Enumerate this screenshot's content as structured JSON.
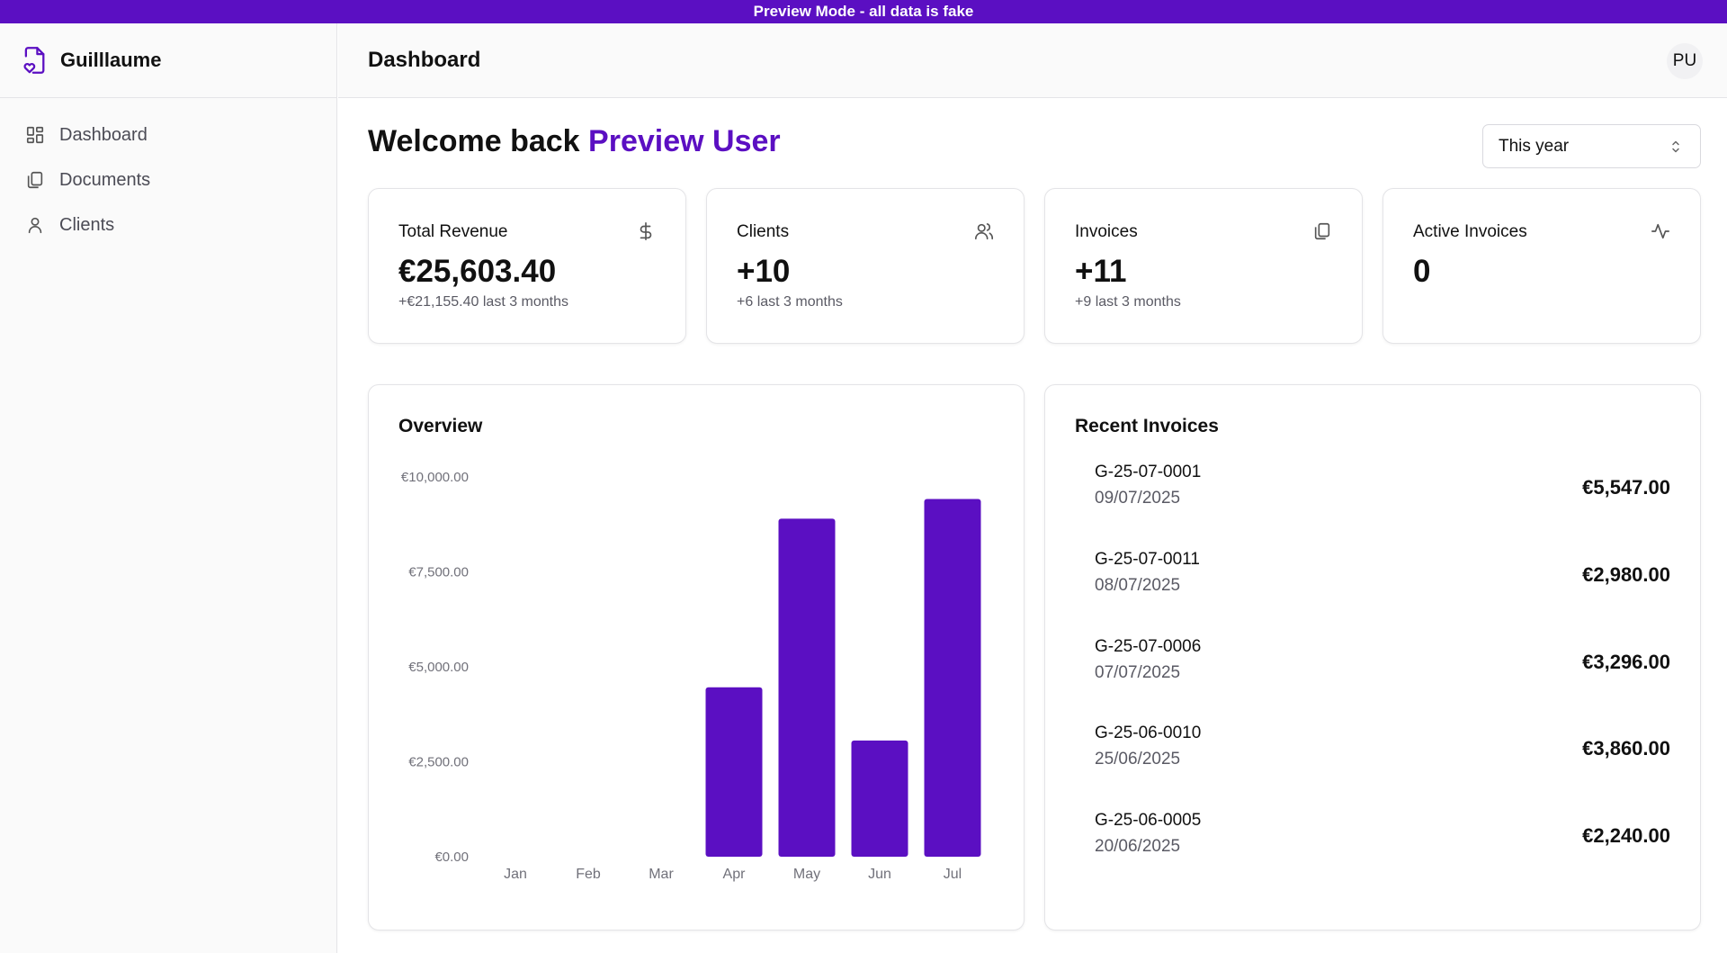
{
  "banner": {
    "text": "Preview Mode - all data is fake"
  },
  "brand": {
    "name": "Guilllaume"
  },
  "nav": {
    "items": [
      {
        "label": "Dashboard",
        "icon": "dashboard-icon"
      },
      {
        "label": "Documents",
        "icon": "documents-icon"
      },
      {
        "label": "Clients",
        "icon": "user-icon"
      }
    ]
  },
  "header": {
    "title": "Dashboard",
    "avatar_initials": "PU"
  },
  "welcome": {
    "prefix": "Welcome back",
    "user": "Preview User"
  },
  "period_select": {
    "value": "This year"
  },
  "stats": [
    {
      "title": "Total Revenue",
      "value": "€25,603.40",
      "sub": "+€21,155.40 last 3 months",
      "icon": "dollar-icon"
    },
    {
      "title": "Clients",
      "value": "+10",
      "sub": "+6 last 3 months",
      "icon": "users-icon"
    },
    {
      "title": "Invoices",
      "value": "+11",
      "sub": "+9 last 3 months",
      "icon": "copy-icon"
    },
    {
      "title": "Active Invoices",
      "value": "0",
      "sub": "",
      "icon": "activity-icon"
    }
  ],
  "overview": {
    "title": "Overview"
  },
  "chart_data": {
    "type": "bar",
    "title": "Overview",
    "categories": [
      "Jan",
      "Feb",
      "Mar",
      "Apr",
      "May",
      "Jun",
      "Jul"
    ],
    "values": [
      0,
      0,
      0,
      4460,
      8900,
      3060,
      9420
    ],
    "ylim": [
      0,
      10000
    ],
    "yticks": [
      0,
      2500,
      5000,
      7500,
      10000
    ],
    "ytick_labels": [
      "€0.00",
      "€2,500.00",
      "€5,000.00",
      "€7,500.00",
      "€10,000.00"
    ],
    "bar_color": "#5b0fc2",
    "grid": false
  },
  "recent": {
    "title": "Recent Invoices",
    "items": [
      {
        "number": "G-25-07-0001",
        "date": "09/07/2025",
        "amount": "€5,547.00"
      },
      {
        "number": "G-25-07-0011",
        "date": "08/07/2025",
        "amount": "€2,980.00"
      },
      {
        "number": "G-25-07-0006",
        "date": "07/07/2025",
        "amount": "€3,296.00"
      },
      {
        "number": "G-25-06-0010",
        "date": "25/06/2025",
        "amount": "€3,860.00"
      },
      {
        "number": "G-25-06-0005",
        "date": "20/06/2025",
        "amount": "€2,240.00"
      }
    ]
  },
  "colors": {
    "accent": "#5b0fc2"
  }
}
